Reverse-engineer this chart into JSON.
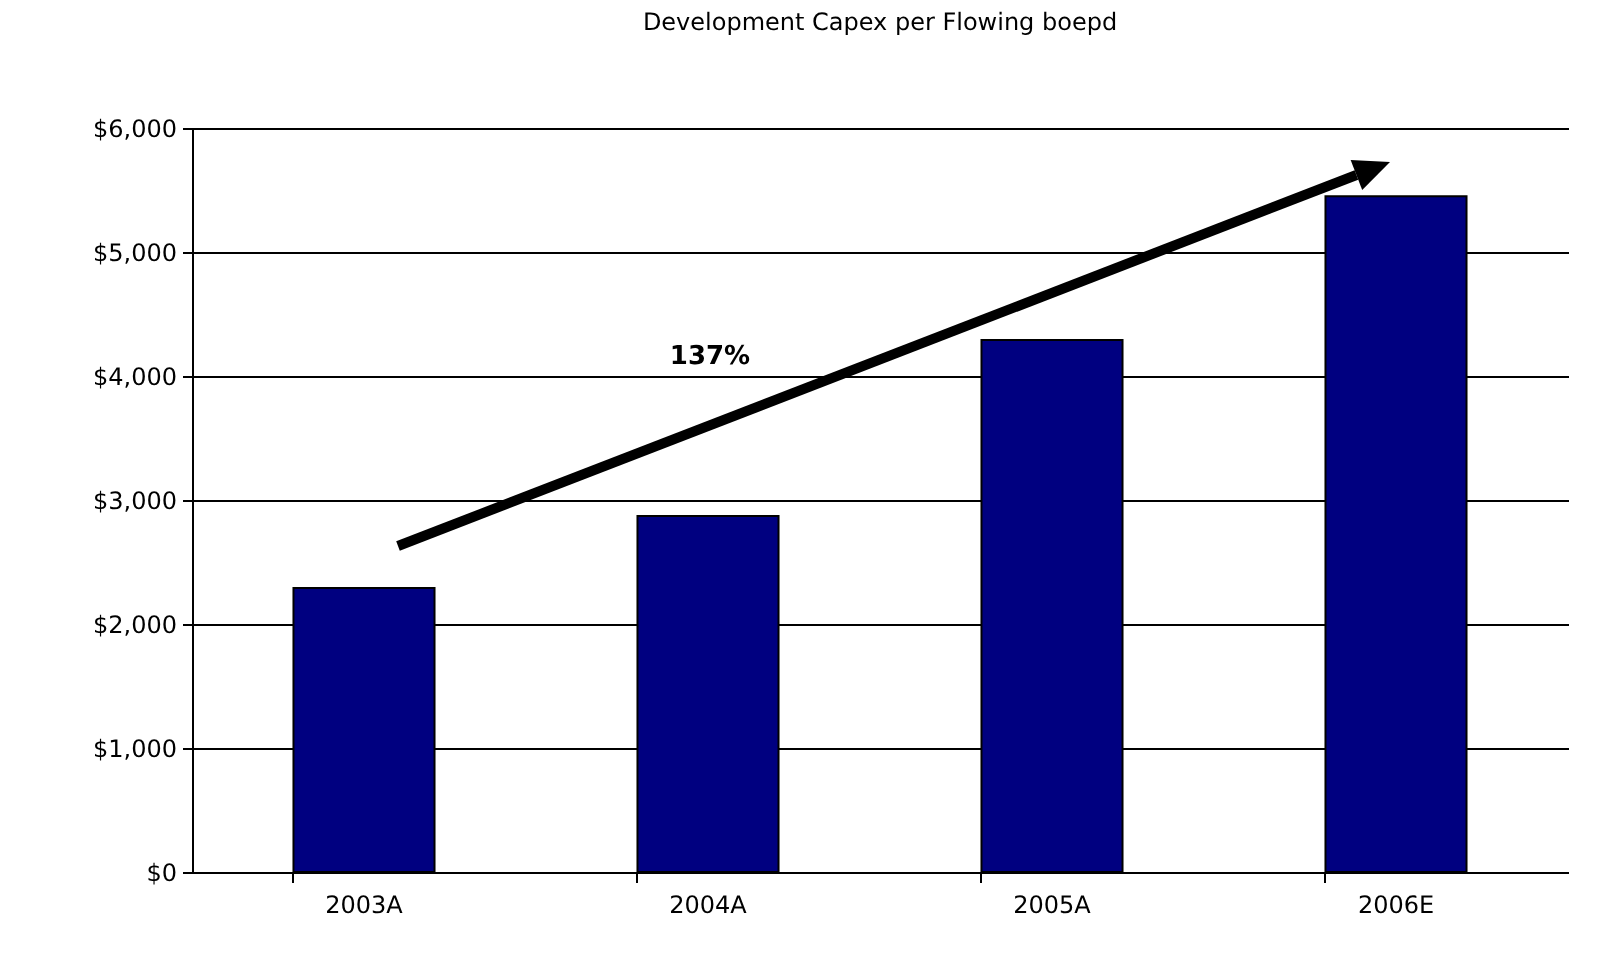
{
  "chart_data": {
    "type": "bar",
    "title": "Development Capex per Flowing boepd",
    "categories": [
      "2003A",
      "2004A",
      "2005A",
      "2006E"
    ],
    "values": [
      2290,
      2870,
      4290,
      5450
    ],
    "color": "#000080",
    "ylim": [
      0,
      6000
    ],
    "yticks": [
      {
        "value": 0,
        "label": "$0"
      },
      {
        "value": 1000,
        "label": "$1,000"
      },
      {
        "value": 2000,
        "label": "$2,000"
      },
      {
        "value": 3000,
        "label": "$3,000"
      },
      {
        "value": 4000,
        "label": "$4,000"
      },
      {
        "value": 5000,
        "label": "$5,000"
      },
      {
        "value": 6000,
        "label": "$6,000"
      }
    ],
    "grid": "y",
    "annotations": [
      "137%"
    ]
  }
}
